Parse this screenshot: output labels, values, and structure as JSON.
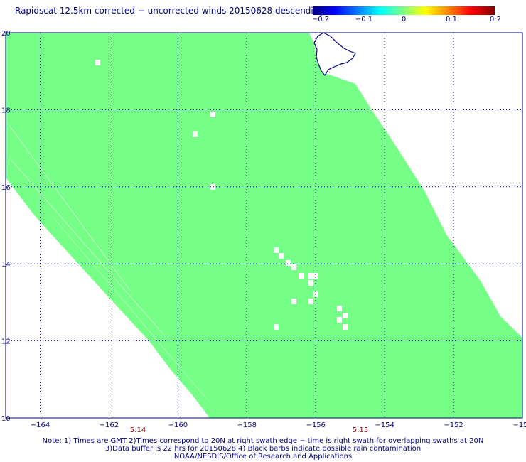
{
  "title": "Rapidscat 12.5km corrected − uncorrected winds 20150628 descending",
  "colorbar": {
    "ticks": [
      "−0.2",
      "−0.1",
      "0",
      "0.1",
      "0.2"
    ],
    "colors": [
      "#000080",
      "#0000ff",
      "#00ffff",
      "#80ff80",
      "#ffff00",
      "#ff8000",
      "#800000"
    ]
  },
  "map": {
    "lat_labels": [
      "20",
      "18",
      "16",
      "14",
      "12",
      "10"
    ],
    "lon_labels": [
      "−164",
      "−162",
      "−160",
      "−158",
      "−156",
      "−154",
      "−152",
      "−15"
    ],
    "lat_range": [
      10,
      20
    ],
    "lon_range": [
      -165,
      -150
    ],
    "swath_color": "#76ff86",
    "coast_color": "#000080"
  },
  "time_labels": [
    "5:14",
    "5:15"
  ],
  "notes": [
    "Note: 1) Times are GMT 2)Times correspond to 20N at right swath edge − time is right swath for overlapping swaths at 20N",
    "3)Data buffer is 22 hrs for 20150628 4) Black barbs indicate possible rain contamination",
    "NOAA/NESDIS/Office of Research and Applications"
  ]
}
